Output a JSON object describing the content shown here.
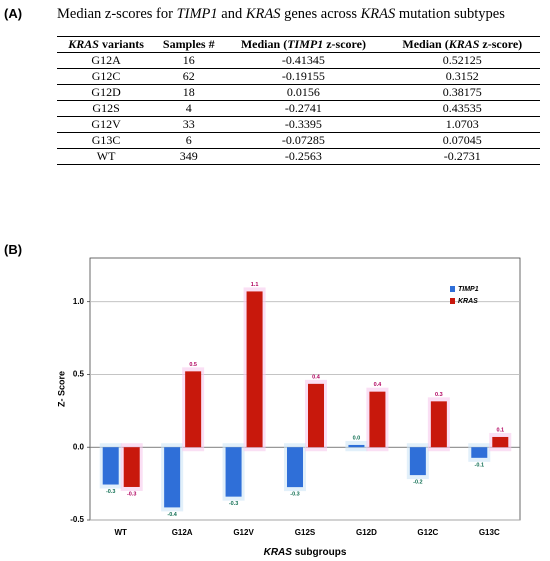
{
  "panel_a": {
    "label": "(A)",
    "title_parts": [
      "Median z-scores for ",
      "TIMP1",
      " and ",
      "KRAS",
      " genes across ",
      "KRAS",
      " mutation subtypes"
    ],
    "table": {
      "header": [
        [
          "KRAS",
          " variants"
        ],
        [
          "Samples #"
        ],
        [
          "Median (",
          "TIMP1",
          " z-score)"
        ],
        [
          "Median (",
          "KRAS",
          " z-score)"
        ]
      ],
      "rows": [
        [
          "G12A",
          16,
          -0.41345,
          0.52125
        ],
        [
          "G12C",
          62,
          -0.19155,
          0.3152
        ],
        [
          "G12D",
          18,
          0.0156,
          0.38175
        ],
        [
          "G12S",
          4,
          -0.2741,
          0.43535
        ],
        [
          "G12V",
          33,
          -0.3395,
          1.0703
        ],
        [
          "G13C",
          6,
          -0.07285,
          0.07045
        ],
        [
          "WT",
          349,
          -0.2563,
          -0.2731
        ]
      ]
    }
  },
  "chart_data": {
    "type": "bar",
    "panel_label": "(B)",
    "y_label": "Z- Score",
    "x_label_parts": [
      "KRAS",
      " subgroups"
    ],
    "categories": [
      "WT",
      "G12A",
      "G12V",
      "G12S",
      "G12D",
      "G12C",
      "G13C"
    ],
    "series": [
      {
        "name": "TIMP1",
        "color": "#2f6fd8",
        "values": [
          -0.2563,
          -0.41345,
          -0.3395,
          -0.2741,
          0.0156,
          -0.19155,
          -0.07285
        ],
        "value_labels": [
          "-0.3",
          "-0.4",
          "-0.3",
          "-0.3",
          "0.0",
          "-0.2",
          "-0.1"
        ]
      },
      {
        "name": "KRAS",
        "color": "#c8180c",
        "values": [
          -0.2731,
          0.52125,
          1.0703,
          0.43535,
          0.38175,
          0.3152,
          0.07045
        ],
        "value_labels": [
          "-0.3",
          "0.5",
          "1.1",
          "0.4",
          "0.4",
          "0.3",
          "0.1"
        ]
      }
    ],
    "ylim": [
      -0.5,
      1.3
    ],
    "yticks": [
      -0.5,
      {
        "value": 0,
        "label": "0.0"
      },
      0.5,
      {
        "value": 1,
        "label": "1.0"
      }
    ],
    "grid": true,
    "legend": "top-right"
  }
}
